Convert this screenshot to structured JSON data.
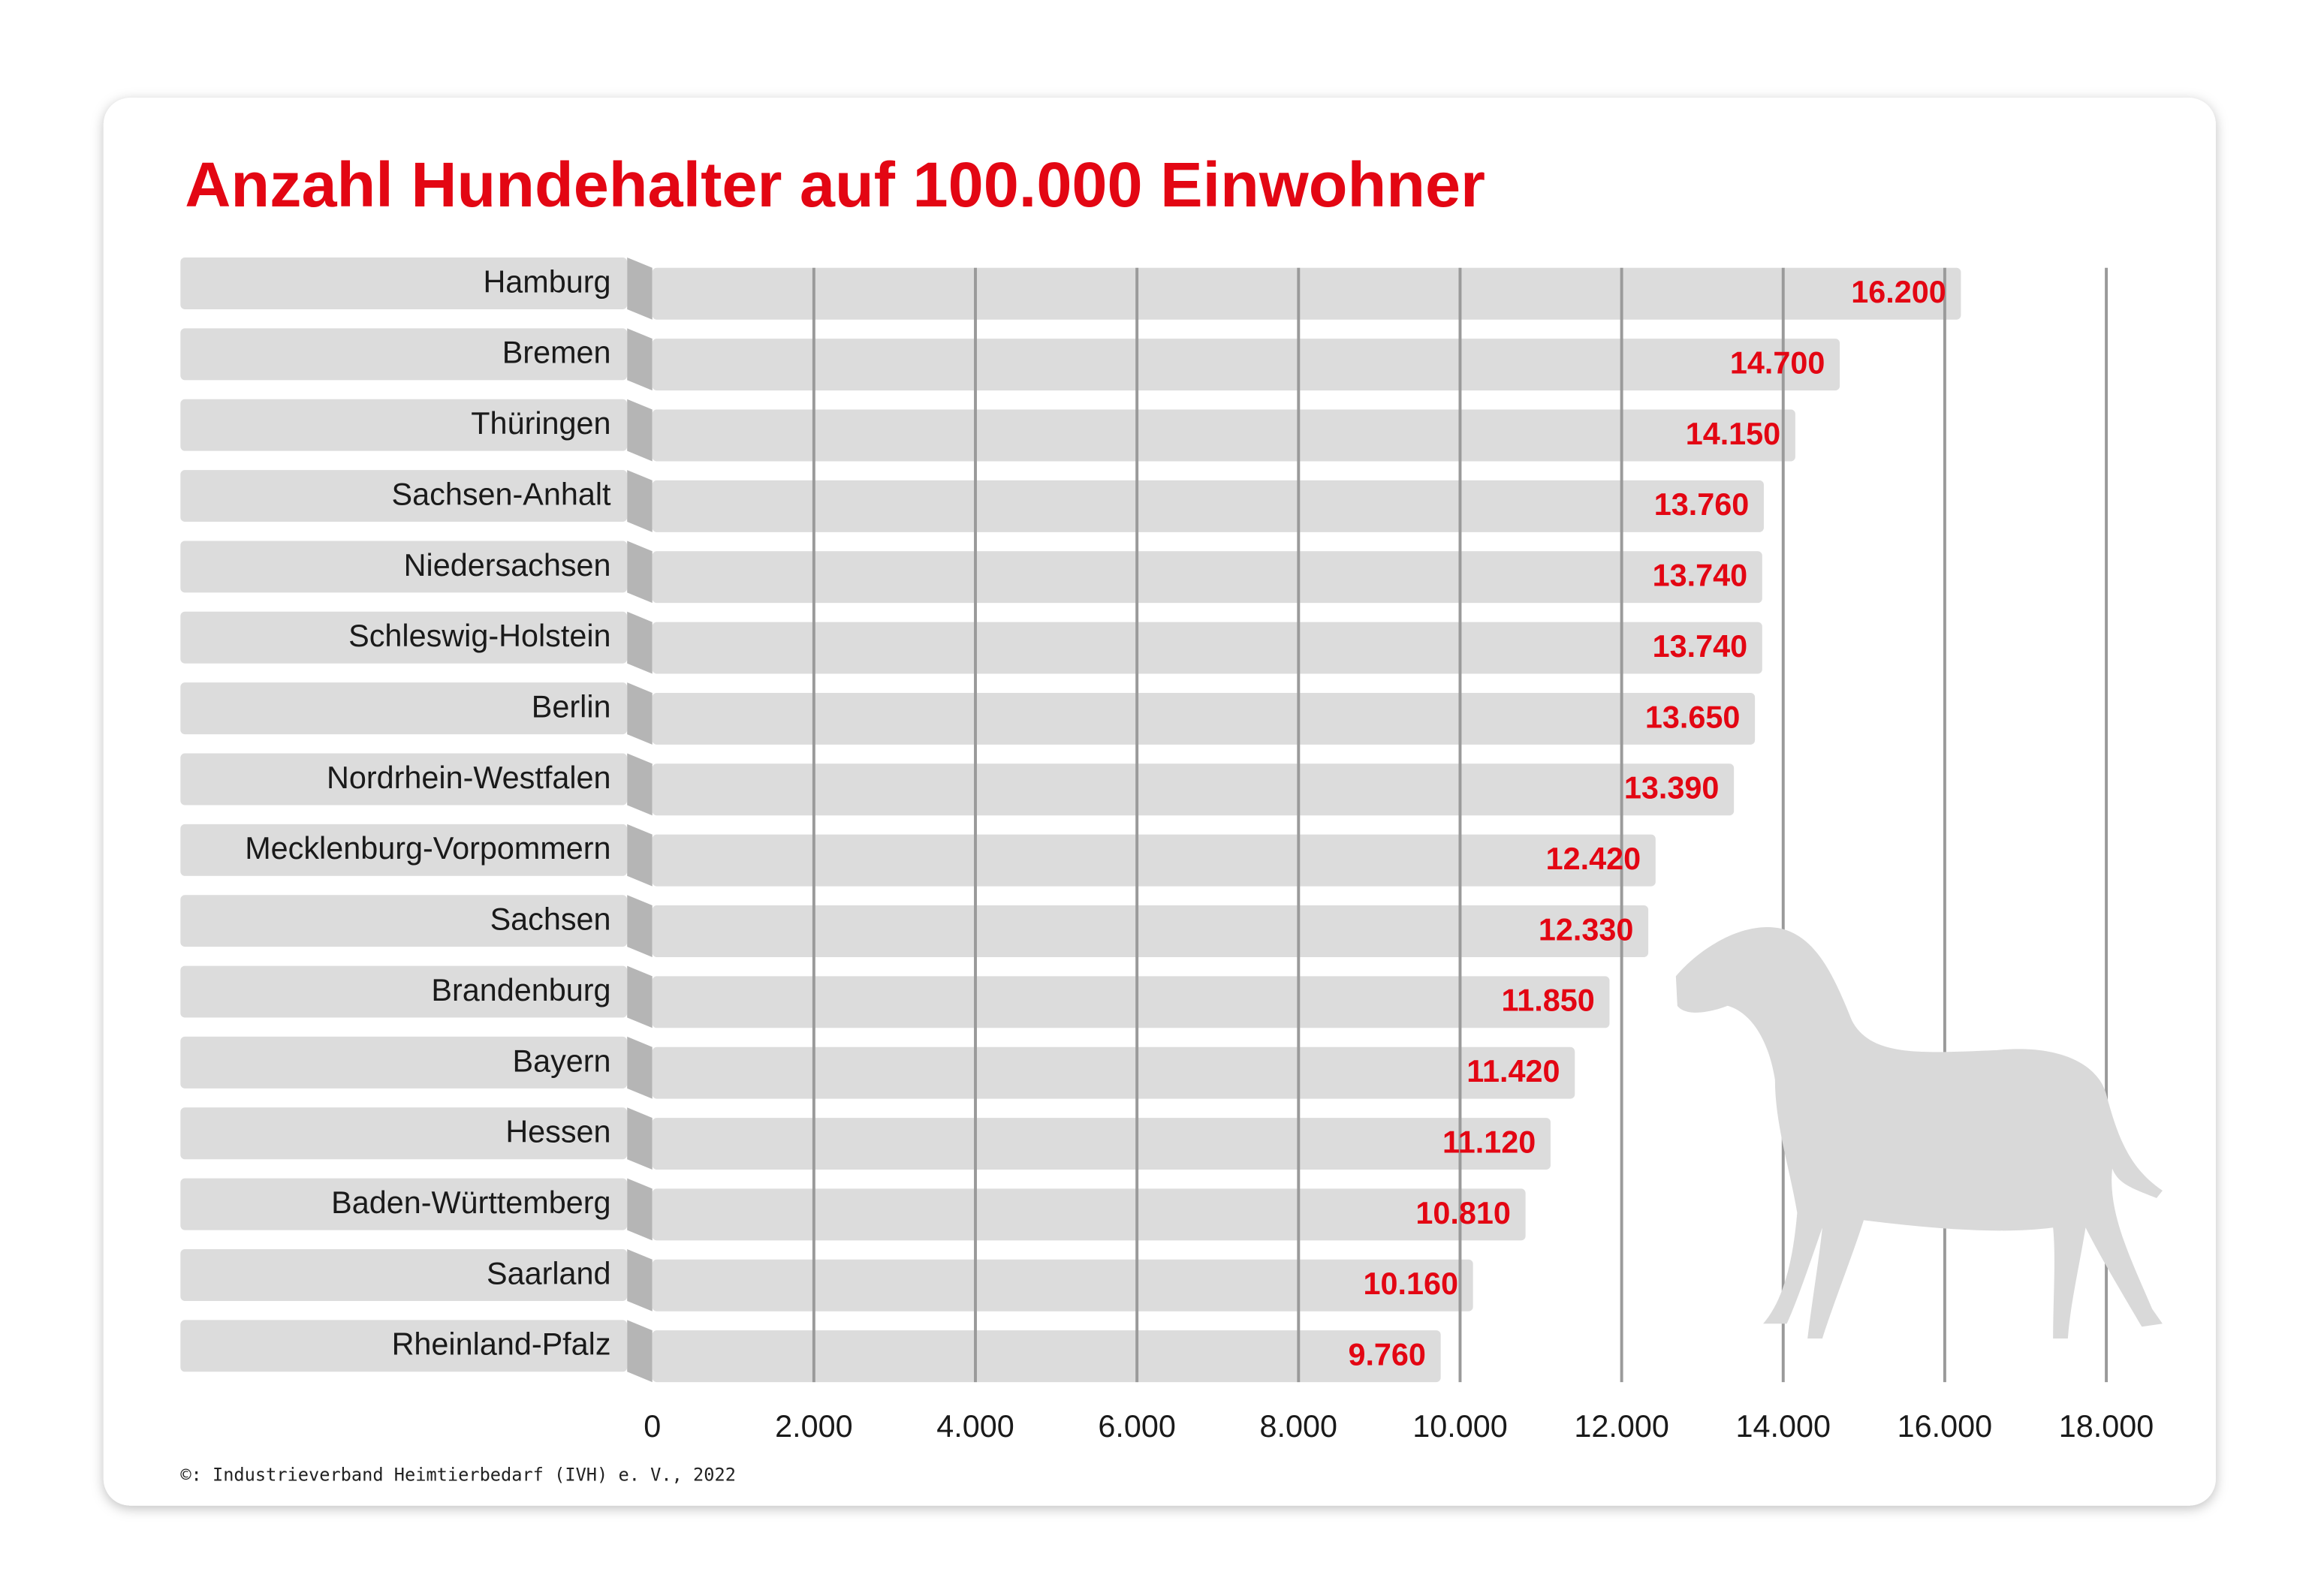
{
  "chart_data": {
    "type": "bar",
    "orientation": "horizontal",
    "title": "Anzahl Hundehalter auf 100.000 Einwohner",
    "categories": [
      "Hamburg",
      "Bremen",
      "Thüringen",
      "Sachsen-Anhalt",
      "Niedersachsen",
      "Schleswig-Holstein",
      "Berlin",
      "Nordrhein-Westfalen",
      "Mecklenburg-Vorpommern",
      "Sachsen",
      "Brandenburg",
      "Bayern",
      "Hessen",
      "Baden-Württemberg",
      "Saarland",
      "Rheinland-Pfalz"
    ],
    "values": [
      16200,
      14700,
      14150,
      13760,
      13740,
      13740,
      13650,
      13390,
      12420,
      12330,
      11850,
      11420,
      11120,
      10810,
      10160,
      9760
    ],
    "value_labels": [
      "16.200",
      "14.700",
      "14.150",
      "13.760",
      "13.740",
      "13.740",
      "13.650",
      "13.390",
      "12.420",
      "12.330",
      "11.850",
      "11.420",
      "11.120",
      "10.810",
      "10.160",
      "9.760"
    ],
    "color": "#dcdcdc",
    "label_color": "#e30613",
    "xlim": [
      0,
      18000
    ],
    "xticks": [
      0,
      {
        "value": 2000,
        "label": "2.000"
      },
      {
        "value": 4000,
        "label": "4.000"
      },
      {
        "value": 6000,
        "label": "6.000"
      },
      {
        "value": 8000,
        "label": "8.000"
      },
      {
        "value": 10000,
        "label": "10.000"
      },
      {
        "value": 12000,
        "label": "12.000"
      },
      {
        "value": 14000,
        "label": "14.000"
      },
      {
        "value": 16000,
        "label": "16.000"
      },
      {
        "value": 18000,
        "label": "18.000"
      }
    ],
    "grid": true,
    "source": "©: Industrieverband Heimtierbedarf (IVH) e. V., 2022"
  }
}
